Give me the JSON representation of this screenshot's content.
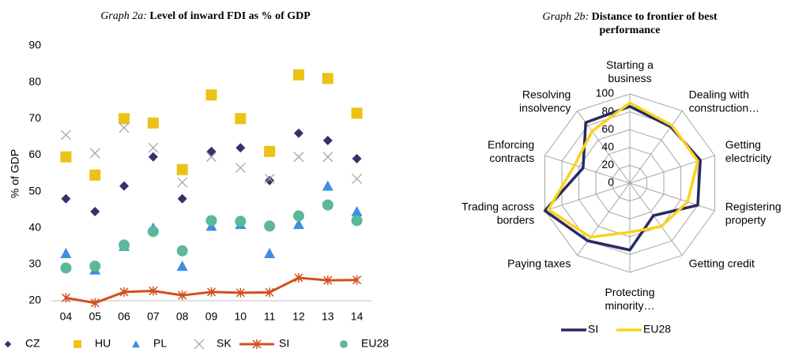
{
  "chart_data": [
    {
      "type": "scatter",
      "title_prefix": "Graph 2a:",
      "title": "Level of inward FDI as % of GDP",
      "y_label": "% of GDP",
      "categories": [
        "04",
        "05",
        "06",
        "07",
        "08",
        "09",
        "10",
        "11",
        "12",
        "13",
        "14"
      ],
      "ylim": [
        20,
        90
      ],
      "yticks": [
        20,
        30,
        40,
        50,
        60,
        70,
        80,
        90
      ],
      "series": [
        {
          "name": "CZ",
          "color": "#2e3468",
          "marker": "diamond",
          "values": [
            48,
            44.5,
            51.5,
            59.5,
            48,
            61,
            62,
            53,
            66,
            64,
            59
          ]
        },
        {
          "name": "HU",
          "color": "#ecc216",
          "marker": "square",
          "values": [
            59.5,
            54.5,
            70,
            68.8,
            56,
            76.5,
            70,
            61,
            82,
            81,
            71.5
          ]
        },
        {
          "name": "PL",
          "color": "#3d8fe0",
          "marker": "triangle",
          "values": [
            33,
            28.5,
            35,
            40,
            29.5,
            40.5,
            41,
            33,
            41,
            51.5,
            44.5
          ]
        },
        {
          "name": "SK",
          "color": "#a6a6a6",
          "marker": "x",
          "values": [
            65.5,
            60.5,
            67.5,
            62,
            52.5,
            59.5,
            56.5,
            53.5,
            59.5,
            59.5,
            53.5
          ]
        },
        {
          "name": "SI",
          "color": "#d0501e",
          "marker": "line-asterisk",
          "values": [
            20.8,
            19.4,
            22.4,
            22.7,
            21.5,
            22.4,
            22.2,
            22.3,
            26.3,
            25.6,
            25.7
          ]
        },
        {
          "name": "EU28",
          "color": "#5bb89a",
          "marker": "circle",
          "values": [
            29,
            29.5,
            35.3,
            39,
            33.7,
            42,
            41.8,
            40.5,
            43.3,
            46.3,
            42
          ]
        }
      ]
    },
    {
      "type": "radar",
      "title_prefix": "Graph 2b:",
      "title": [
        "Distance to frontier of best",
        "performance"
      ],
      "categories": [
        [
          "Starting a",
          "business"
        ],
        [
          "Dealing with",
          "construction…"
        ],
        [
          "Getting",
          "electricity"
        ],
        [
          "Registering",
          "property"
        ],
        [
          "Getting credit"
        ],
        [
          "Protecting",
          "minority…"
        ],
        [
          "Paying taxes"
        ],
        [
          "Trading across",
          "borders"
        ],
        [
          "Enforcing",
          "contracts"
        ],
        [
          "Resolving",
          "insolvency"
        ]
      ],
      "rlim": [
        0,
        100
      ],
      "rticks": [
        0,
        20,
        40,
        60,
        80,
        100
      ],
      "series": [
        {
          "name": "SI",
          "color": "#262b63",
          "values": [
            86,
            78,
            83,
            80,
            45,
            75,
            80,
            100,
            55,
            84
          ]
        },
        {
          "name": "EU28",
          "color": "#fbd31c",
          "values": [
            90,
            80,
            80,
            68,
            60,
            55,
            75,
            96,
            65,
            72
          ]
        }
      ]
    }
  ]
}
